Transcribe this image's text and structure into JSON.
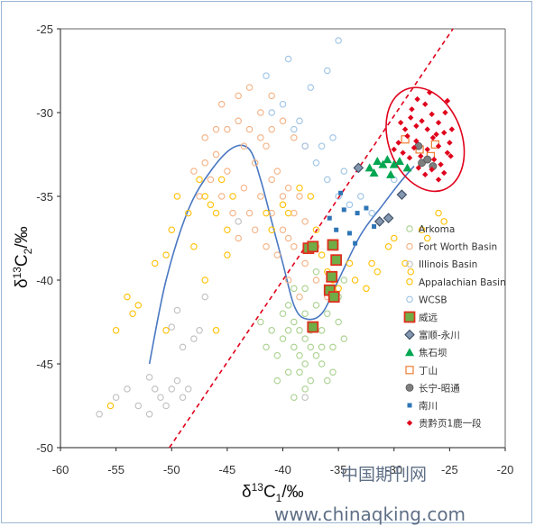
{
  "chart_data": {
    "type": "scatter",
    "title": "",
    "xlabel": "δ13C1/‰",
    "ylabel": "δ13C2/‰",
    "xlim": [
      -60,
      -20
    ],
    "ylim": [
      -50,
      -25
    ],
    "xticks": [
      "-60",
      "-55",
      "-50",
      "-45",
      "-40",
      "-35",
      "-30",
      "-25",
      "-20"
    ],
    "yticks": [
      "-25",
      "-30",
      "-35",
      "-40",
      "-45",
      "-50"
    ],
    "grid": false,
    "legend_position": "right",
    "series": [
      {
        "name": "Arkoma",
        "marker": "circle-open",
        "color": "#a9d18e",
        "points": [
          [
            -39.5,
            -41.5
          ],
          [
            -39,
            -42.5
          ],
          [
            -38.5,
            -43
          ],
          [
            -38,
            -43.5
          ],
          [
            -37.5,
            -44
          ],
          [
            -37,
            -44.5
          ],
          [
            -39,
            -44
          ],
          [
            -40,
            -43.5
          ],
          [
            -40.5,
            -44.5
          ],
          [
            -38,
            -45
          ],
          [
            -36.5,
            -43
          ],
          [
            -36,
            -42
          ],
          [
            -37,
            -41.5
          ],
          [
            -38,
            -42
          ],
          [
            -39.5,
            -45.5
          ],
          [
            -40.5,
            -46
          ],
          [
            -39,
            -47
          ],
          [
            -38.5,
            -45.5
          ],
          [
            -37.5,
            -46
          ],
          [
            -36.5,
            -45
          ],
          [
            -35.5,
            -44
          ],
          [
            -35,
            -42.5
          ],
          [
            -34.5,
            -43.5
          ],
          [
            -41,
            -43
          ],
          [
            -41.5,
            -44
          ],
          [
            -42,
            -42.5
          ],
          [
            -39,
            -40.5
          ],
          [
            -38,
            -40.5
          ],
          [
            -37,
            -39.5
          ],
          [
            -36,
            -40.5
          ],
          [
            -35,
            -41
          ],
          [
            -34.5,
            -40
          ],
          [
            -40,
            -42
          ],
          [
            -38.5,
            -44.5
          ],
          [
            -36.5,
            -44
          ],
          [
            -37.5,
            -43
          ],
          [
            -39.5,
            -43
          ],
          [
            -38,
            -46.5
          ],
          [
            -36,
            -46
          ],
          [
            -35.5,
            -45.5
          ]
        ]
      },
      {
        "name": "Fort Worth Basin",
        "marker": "circle-open",
        "color": "#f4b183",
        "points": [
          [
            -47,
            -33
          ],
          [
            -46,
            -32.5
          ],
          [
            -45,
            -31
          ],
          [
            -44,
            -30.5
          ],
          [
            -43,
            -31
          ],
          [
            -42,
            -30
          ],
          [
            -41,
            -29
          ],
          [
            -40,
            -30.5
          ],
          [
            -39,
            -31.5
          ],
          [
            -38,
            -32
          ],
          [
            -46.5,
            -34
          ],
          [
            -45.5,
            -35
          ],
          [
            -44.5,
            -36
          ],
          [
            -43.5,
            -34.5
          ],
          [
            -42.5,
            -33
          ],
          [
            -41.5,
            -32
          ],
          [
            -40.5,
            -33.5
          ],
          [
            -39.5,
            -34.5
          ],
          [
            -41,
            -36
          ],
          [
            -40,
            -37
          ],
          [
            -39,
            -38
          ],
          [
            -38,
            -39
          ],
          [
            -37,
            -40
          ],
          [
            -36,
            -41
          ],
          [
            -40.5,
            -38.5
          ],
          [
            -39.5,
            -40
          ],
          [
            -38.5,
            -41
          ],
          [
            -41.5,
            -38
          ],
          [
            -42.5,
            -37
          ],
          [
            -43,
            -36
          ],
          [
            -44,
            -37.5
          ],
          [
            -45,
            -33.5
          ],
          [
            -46,
            -31
          ],
          [
            -47.5,
            -35
          ],
          [
            -48,
            -33.5
          ],
          [
            -44,
            -29
          ],
          [
            -43,
            -28.5
          ],
          [
            -41,
            -31
          ],
          [
            -42,
            -35
          ],
          [
            -39,
            -36
          ],
          [
            -38,
            -36.5
          ],
          [
            -37,
            -38
          ],
          [
            -39.5,
            -37.5
          ],
          [
            -41,
            -34
          ],
          [
            -40,
            -35
          ],
          [
            -43.5,
            -32
          ],
          [
            -42,
            -31.5
          ],
          [
            -45.5,
            -29.5
          ],
          [
            -47,
            -31.5
          ],
          [
            -38.5,
            -35
          ]
        ]
      },
      {
        "name": "Illinois Basin",
        "marker": "circle-open",
        "color": "#bfbfbf",
        "points": [
          [
            -56.5,
            -48
          ],
          [
            -55,
            -47
          ],
          [
            -54,
            -46.5
          ],
          [
            -53,
            -47.5
          ],
          [
            -52,
            -45.8
          ],
          [
            -51.5,
            -46.5
          ],
          [
            -51,
            -47
          ],
          [
            -50.5,
            -47.5
          ],
          [
            -50,
            -46.5
          ],
          [
            -49.5,
            -46
          ],
          [
            -49,
            -47
          ],
          [
            -48.5,
            -46.5
          ],
          [
            -52,
            -48
          ],
          [
            -50,
            -42.8
          ],
          [
            -49,
            -44
          ],
          [
            -48,
            -43.5
          ],
          [
            -47.5,
            -43
          ],
          [
            -49.5,
            -41.8
          ],
          [
            -47,
            -41
          ],
          [
            -44,
            -36.5
          ],
          [
            -38,
            -47
          ]
        ]
      },
      {
        "name": "Appalachian Basin",
        "marker": "circle-open",
        "color": "#ffc000",
        "points": [
          [
            -54,
            -41
          ],
          [
            -53.5,
            -42
          ],
          [
            -53,
            -41.5
          ],
          [
            -55,
            -43
          ],
          [
            -51.5,
            -39
          ],
          [
            -50.5,
            -38.5
          ],
          [
            -50,
            -37
          ],
          [
            -49.5,
            -35
          ],
          [
            -48.5,
            -36
          ],
          [
            -47.5,
            -34
          ],
          [
            -47,
            -35
          ],
          [
            -46.5,
            -35.5
          ],
          [
            -46,
            -36
          ],
          [
            -45.5,
            -34
          ],
          [
            -45,
            -37
          ],
          [
            -44.5,
            -35
          ],
          [
            -48,
            -38
          ],
          [
            -47,
            -40
          ],
          [
            -46,
            -43
          ],
          [
            -45,
            -38.5
          ],
          [
            -41.5,
            -36
          ],
          [
            -41,
            -37
          ],
          [
            -40,
            -35.5
          ],
          [
            -39.5,
            -36
          ],
          [
            -38.5,
            -34.5
          ],
          [
            -37.5,
            -35
          ],
          [
            -37,
            -37
          ],
          [
            -36.5,
            -38.5
          ],
          [
            -36,
            -39.5
          ],
          [
            -35.5,
            -40
          ],
          [
            -35,
            -40.5
          ],
          [
            -34,
            -39
          ],
          [
            -33.5,
            -40
          ],
          [
            -32.5,
            -40.5
          ],
          [
            -32,
            -39
          ],
          [
            -31.5,
            -39.5
          ],
          [
            -30.5,
            -38
          ],
          [
            -30,
            -37.5
          ],
          [
            -29,
            -39
          ],
          [
            -28.5,
            -39.5
          ],
          [
            -27.5,
            -37
          ],
          [
            -27,
            -37.5
          ],
          [
            -26,
            -36
          ],
          [
            -25.5,
            -36.5
          ],
          [
            -55.5,
            -47.5
          ],
          [
            -50.5,
            -43
          ]
        ]
      },
      {
        "name": "WCSB",
        "marker": "circle-open",
        "color": "#9dc3e6",
        "points": [
          [
            -35,
            -25.7
          ],
          [
            -36,
            -27.5
          ],
          [
            -37.5,
            -28.5
          ],
          [
            -39.5,
            -26.8
          ],
          [
            -41.5,
            -27.8
          ],
          [
            -40,
            -29.5
          ],
          [
            -39,
            -31
          ],
          [
            -38,
            -32
          ],
          [
            -37,
            -33
          ],
          [
            -36,
            -34
          ],
          [
            -35,
            -35
          ],
          [
            -34,
            -35.5
          ],
          [
            -33,
            -35
          ],
          [
            -32,
            -36
          ],
          [
            -41,
            -30
          ],
          [
            -38.5,
            -30.5
          ],
          [
            -36.5,
            -32
          ],
          [
            -35.5,
            -31.5
          ],
          [
            -34.5,
            -33.5
          ],
          [
            -30,
            -34
          ]
        ]
      },
      {
        "name": "威远",
        "marker": "square",
        "color": "#e0301e",
        "fill": "#70ad47",
        "points": [
          [
            -37.7,
            -38.1
          ],
          [
            -37.3,
            -38.0
          ],
          [
            -35.5,
            -37.9
          ],
          [
            -35.2,
            -38.8
          ],
          [
            -35.6,
            -39.8
          ],
          [
            -35.8,
            -40.6
          ],
          [
            -35.4,
            -41.0
          ],
          [
            -37.3,
            -42.8
          ]
        ]
      },
      {
        "name": "富顺-永川",
        "marker": "diamond",
        "color": "#44546a",
        "fill": "#8497b0",
        "points": [
          [
            -33.2,
            -33.3
          ],
          [
            -31.3,
            -36.5
          ],
          [
            -30.5,
            -36.3
          ],
          [
            -29.3,
            -34.9
          ]
        ]
      },
      {
        "name": "焦石坝",
        "marker": "triangle",
        "color": "#00a651",
        "points": [
          [
            -32.2,
            -33.3
          ],
          [
            -31.5,
            -32.9
          ],
          [
            -31.0,
            -33.1
          ],
          [
            -30.6,
            -32.8
          ],
          [
            -30.0,
            -33.1
          ],
          [
            -29.5,
            -32.9
          ],
          [
            -28.8,
            -33.3
          ],
          [
            -31.8,
            -33.6
          ],
          [
            -30.3,
            -33.7
          ]
        ]
      },
      {
        "name": "丁山",
        "marker": "square-circle",
        "color": "#ed7d31",
        "points": [
          [
            -29.0,
            -31.6
          ],
          [
            -27.7,
            -32.2
          ],
          [
            -26.7,
            -32.6
          ],
          [
            -26.3,
            -31.9
          ]
        ]
      },
      {
        "name": "长宁-昭通",
        "marker": "circle-filled",
        "color": "#7f7f7f",
        "points": [
          [
            -27.8,
            -32.0
          ],
          [
            -27.5,
            -33.0
          ],
          [
            -27.0,
            -32.8
          ],
          [
            -26.5,
            -33.2
          ]
        ]
      },
      {
        "name": "南川",
        "marker": "small-square",
        "color": "#2e75b6",
        "points": [
          [
            -35.8,
            -36.3
          ],
          [
            -35.2,
            -37.0
          ],
          [
            -34.5,
            -35.8
          ],
          [
            -34.0,
            -37.2
          ],
          [
            -33.3,
            -36.0
          ],
          [
            -32.5,
            -35.7
          ],
          [
            -31.8,
            -36.8
          ],
          [
            -34.8,
            -34.8
          ],
          [
            -33.5,
            -37.8
          ]
        ]
      },
      {
        "name": "贵黔页1鹿一段",
        "marker": "diamond",
        "color": "#e0001b",
        "points": [
          [
            -28.5,
            -30.3
          ],
          [
            -28.0,
            -30.8
          ],
          [
            -27.5,
            -30.5
          ],
          [
            -27.0,
            -31.0
          ],
          [
            -26.5,
            -31.5
          ],
          [
            -26.0,
            -32.0
          ],
          [
            -25.5,
            -31.2
          ],
          [
            -25.0,
            -31.8
          ],
          [
            -28.8,
            -31.4
          ],
          [
            -28.2,
            -32.1
          ],
          [
            -27.6,
            -32.6
          ],
          [
            -27.0,
            -32.2
          ],
          [
            -26.4,
            -32.8
          ],
          [
            -25.8,
            -33.1
          ],
          [
            -25.2,
            -32.4
          ],
          [
            -29.0,
            -31.0
          ],
          [
            -28.4,
            -29.8
          ],
          [
            -27.2,
            -29.5
          ],
          [
            -26.6,
            -30.1
          ],
          [
            -26.0,
            -30.6
          ],
          [
            -25.4,
            -30.0
          ],
          [
            -27.8,
            -33.3
          ],
          [
            -27.2,
            -33.7
          ],
          [
            -26.6,
            -33.4
          ],
          [
            -26.0,
            -34.0
          ],
          [
            -25.5,
            -33.6
          ],
          [
            -28.6,
            -32.7
          ],
          [
            -29.2,
            -32.4
          ],
          [
            -29.6,
            -31.8
          ],
          [
            -30.0,
            -32.2
          ],
          [
            -26.8,
            -28.8
          ],
          [
            -27.9,
            -29.2
          ],
          [
            -25.2,
            -29.3
          ],
          [
            -24.8,
            -31.0
          ],
          [
            -24.9,
            -32.6
          ],
          [
            -29.4,
            -30.6
          ],
          [
            -28.0,
            -31.7
          ],
          [
            -26.2,
            -31.3
          ]
        ]
      }
    ],
    "annotations": {
      "trend_curve": {
        "points": [
          [
            -52,
            -45
          ],
          [
            -50.5,
            -40
          ],
          [
            -48.5,
            -35.8
          ],
          [
            -46.5,
            -33.5
          ],
          [
            -44.5,
            -32.1
          ],
          [
            -43,
            -32.2
          ],
          [
            -42,
            -34
          ],
          [
            -41,
            -36.5
          ],
          [
            -40,
            -39
          ],
          [
            -39,
            -41.5
          ],
          [
            -38,
            -42.3
          ],
          [
            -36.5,
            -42
          ],
          [
            -35,
            -40
          ],
          [
            -33,
            -37.3
          ],
          [
            -31,
            -35.5
          ],
          [
            -29.5,
            -34.2
          ],
          [
            -28.2,
            -33.2
          ]
        ],
        "color": "#4a78c2"
      },
      "reference_line": {
        "points": [
          [
            -50.2,
            -50
          ],
          [
            -24.7,
            -25
          ]
        ],
        "color": "#e0001b",
        "style": "dashed"
      },
      "ellipse": {
        "center": [
          -27.2,
          -31.6
        ],
        "radii": [
          3.3,
          3.2
        ],
        "rotation_deg": -20,
        "color": "#e0001b"
      }
    }
  },
  "watermark": {
    "text_cn": "中国期刊网",
    "url": "www.chinaqking.com"
  }
}
